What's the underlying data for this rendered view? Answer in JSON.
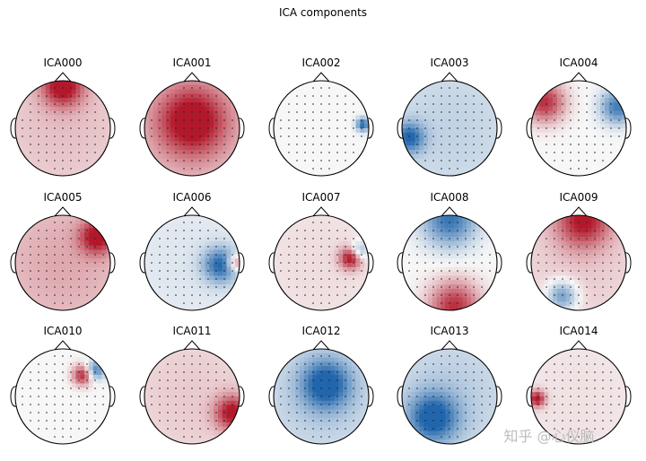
{
  "title": "ICA components",
  "watermark": "知乎 @心仪脑",
  "colors": {
    "negative": "#2166ac",
    "neutral": "#f7f7f7",
    "positive": "#b2182b",
    "outline": "#000000",
    "sensor": "#222222"
  },
  "chart_data": {
    "type": "heatmap",
    "title": "ICA components",
    "colormap": "RdBu_r",
    "value_range": [
      -1,
      1
    ],
    "layout": {
      "rows": 3,
      "cols": 5
    },
    "components": [
      {
        "name": "ICA000",
        "blobs": [
          {
            "u": 0,
            "v": 0.9,
            "s": 0.3,
            "a": 1.0
          },
          {
            "u": 0,
            "v": 0.1,
            "s": 1.5,
            "a": 0.25
          }
        ]
      },
      {
        "name": "ICA001",
        "blobs": [
          {
            "u": 0,
            "v": 0.15,
            "s": 0.5,
            "a": 0.95
          },
          {
            "u": 0,
            "v": 0,
            "s": 1.6,
            "a": 0.3
          }
        ]
      },
      {
        "name": "ICA002",
        "blobs": [
          {
            "u": 0.88,
            "v": 0.08,
            "s": 0.1,
            "a": -1.0
          }
        ]
      },
      {
        "name": "ICA003",
        "blobs": [
          {
            "u": -0.85,
            "v": -0.2,
            "s": 0.22,
            "a": -0.85
          },
          {
            "u": 0,
            "v": 0,
            "s": 1.4,
            "a": -0.25
          }
        ]
      },
      {
        "name": "ICA004",
        "blobs": [
          {
            "u": -0.72,
            "v": 0.55,
            "s": 0.3,
            "a": 0.9
          },
          {
            "u": 0.82,
            "v": 0.45,
            "s": 0.25,
            "a": -0.85
          }
        ]
      },
      {
        "name": "ICA005",
        "blobs": [
          {
            "u": 0.72,
            "v": 0.55,
            "s": 0.25,
            "a": 0.9
          },
          {
            "u": 0,
            "v": 0,
            "s": 1.4,
            "a": 0.35
          }
        ]
      },
      {
        "name": "ICA006",
        "blobs": [
          {
            "u": 0.6,
            "v": -0.05,
            "s": 0.25,
            "a": -0.9
          },
          {
            "u": 0.9,
            "v": 0.0,
            "s": 0.12,
            "a": 0.8
          },
          {
            "u": 0,
            "v": 0,
            "s": 1.4,
            "a": -0.12
          }
        ]
      },
      {
        "name": "ICA007",
        "blobs": [
          {
            "u": 0.62,
            "v": 0.1,
            "s": 0.16,
            "a": 1.0
          },
          {
            "u": 0.8,
            "v": 0.25,
            "s": 0.14,
            "a": -0.6
          },
          {
            "u": 0,
            "v": 0,
            "s": 1.4,
            "a": 0.12
          }
        ]
      },
      {
        "name": "ICA008",
        "blobs": [
          {
            "u": 0,
            "v": 0.92,
            "s": 0.4,
            "a": -0.9
          },
          {
            "u": 0.1,
            "v": -0.92,
            "s": 0.38,
            "a": 0.9
          }
        ]
      },
      {
        "name": "ICA009",
        "blobs": [
          {
            "u": 0.1,
            "v": 0.9,
            "s": 0.4,
            "a": 0.9
          },
          {
            "u": -0.35,
            "v": -0.7,
            "s": 0.22,
            "a": -0.75
          },
          {
            "u": 0,
            "v": 0,
            "s": 1.4,
            "a": 0.2
          }
        ]
      },
      {
        "name": "ICA010",
        "blobs": [
          {
            "u": 0.42,
            "v": 0.45,
            "s": 0.15,
            "a": 0.95
          },
          {
            "u": 0.68,
            "v": 0.55,
            "s": 0.14,
            "a": -0.85
          }
        ]
      },
      {
        "name": "ICA011",
        "blobs": [
          {
            "u": 0.85,
            "v": -0.35,
            "s": 0.25,
            "a": 0.95
          },
          {
            "u": 0,
            "v": 0,
            "s": 1.4,
            "a": 0.2
          }
        ]
      },
      {
        "name": "ICA012",
        "blobs": [
          {
            "u": 0.1,
            "v": 0.25,
            "s": 0.35,
            "a": -0.95
          },
          {
            "u": 0,
            "v": 0,
            "s": 1.2,
            "a": -0.3
          }
        ]
      },
      {
        "name": "ICA013",
        "blobs": [
          {
            "u": -0.35,
            "v": -0.45,
            "s": 0.35,
            "a": -0.95
          },
          {
            "u": 0,
            "v": 0,
            "s": 1.2,
            "a": -0.3
          }
        ]
      },
      {
        "name": "ICA014",
        "blobs": [
          {
            "u": -0.88,
            "v": -0.05,
            "s": 0.12,
            "a": 1.0
          },
          {
            "u": 0,
            "v": 0,
            "s": 1.4,
            "a": 0.1
          }
        ]
      }
    ]
  }
}
